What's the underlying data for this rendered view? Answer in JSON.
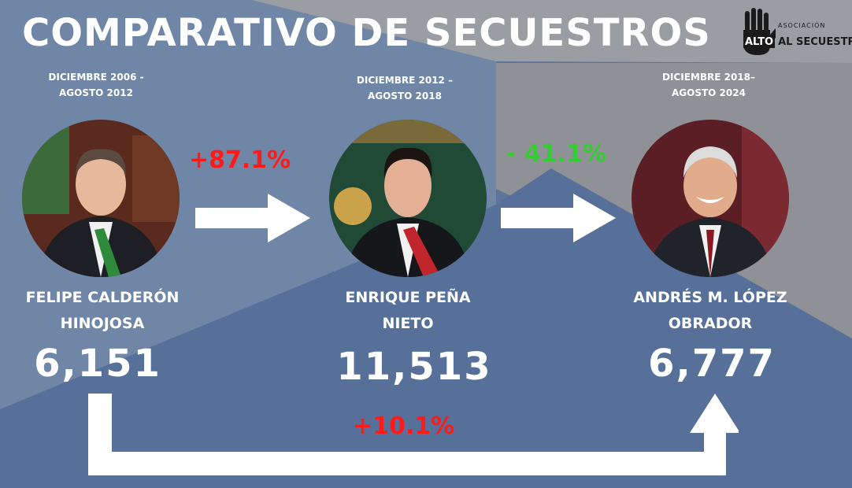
{
  "title": "COMPARATIVO DE SECUESTROS",
  "logo": {
    "tag": "ASOCIACIÓN",
    "word1": "ALTO",
    "word2": "AL SECUESTRO",
    "icon": "raised-hand-icon"
  },
  "presidents": [
    {
      "period_line1": "DICIEMBRE 2006 -",
      "period_line2": "AGOSTO 2012",
      "name_line1": "FELIPE CALDERÓN",
      "name_line2": "HINOJOSA",
      "kidnappings": "6,151"
    },
    {
      "period_line1": "DICIEMBRE 2012 –",
      "period_line2": "AGOSTO 2018",
      "name_line1": "ENRIQUE PEÑA",
      "name_line2": "NIETO",
      "kidnappings": "11,513"
    },
    {
      "period_line1": "DICIEMBRE 2018–",
      "period_line2": "AGOSTO 2024",
      "name_line1": "ANDRÉS M. LÓPEZ",
      "name_line2": "OBRADOR",
      "kidnappings": "6,777"
    }
  ],
  "changes": {
    "first_to_second": "+87.1%",
    "second_to_third": "- 41.1%",
    "first_to_third": "+10.1%"
  },
  "colors": {
    "increase": "#ff1a1a",
    "decrease": "#33cc33",
    "background": "#5d7598"
  }
}
